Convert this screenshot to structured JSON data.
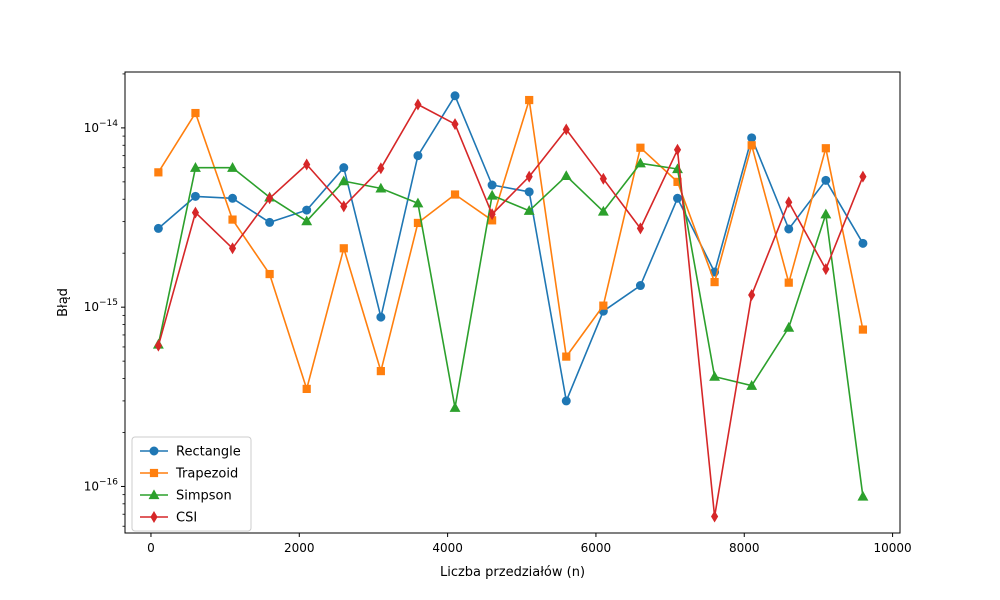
{
  "chart_data": {
    "type": "line",
    "xlabel": "Liczba przedziałów (n)",
    "ylabel": "Błąd",
    "xlim": [
      -350,
      10100
    ],
    "ylim": [
      5.5e-17,
      2.05e-14
    ],
    "yscale": "log",
    "x_ticks": [
      {
        "value": 0,
        "label": "0"
      },
      {
        "value": 2000,
        "label": "2000"
      },
      {
        "value": 4000,
        "label": "4000"
      },
      {
        "value": 6000,
        "label": "6000"
      },
      {
        "value": 8000,
        "label": "8000"
      },
      {
        "value": 10000,
        "label": "10000"
      }
    ],
    "y_ticks": [
      {
        "value": 1e-16,
        "base": "10",
        "exp": "−16"
      },
      {
        "value": 1e-15,
        "base": "10",
        "exp": "−15"
      },
      {
        "value": 1e-14,
        "base": "10",
        "exp": "−14"
      }
    ],
    "grid": false,
    "legend": "lower-left",
    "x": [
      100,
      600,
      1100,
      1600,
      2100,
      2600,
      3100,
      3600,
      4100,
      4600,
      5100,
      5600,
      6100,
      6600,
      7100,
      7600,
      8100,
      8600,
      9100,
      9600
    ],
    "series": [
      {
        "name": "Rectangle",
        "color": "#1f77b4",
        "marker": "circle",
        "values": [
          2.75e-15,
          4.15e-15,
          4.05e-15,
          2.97e-15,
          3.48e-15,
          6e-15,
          8.8e-16,
          7e-15,
          1.51e-14,
          4.8e-15,
          4.4e-15,
          3e-16,
          9.5e-16,
          1.32e-15,
          4.05e-15,
          1.57e-15,
          8.8e-15,
          2.73e-15,
          5.1e-15,
          2.27e-15
        ]
      },
      {
        "name": "Trapezoid",
        "color": "#ff7f0e",
        "marker": "square",
        "values": [
          5.65e-15,
          1.21e-14,
          3.08e-15,
          1.53e-15,
          3.5e-16,
          2.13e-15,
          4.4e-16,
          2.95e-15,
          4.25e-15,
          3.05e-15,
          1.43e-14,
          5.3e-16,
          1.02e-15,
          7.75e-15,
          5e-15,
          1.38e-15,
          8e-15,
          1.37e-15,
          7.7e-15,
          7.5e-16
        ]
      },
      {
        "name": "Simpson",
        "color": "#2ca02c",
        "marker": "triangle",
        "values": [
          6.2e-16,
          6e-15,
          6e-15,
          4.1e-15,
          3.02e-15,
          5.05e-15,
          4.6e-15,
          3.8e-15,
          2.75e-16,
          4.2e-15,
          3.45e-15,
          5.4e-15,
          3.42e-15,
          6.35e-15,
          5.9e-15,
          4.1e-16,
          3.65e-16,
          7.7e-16,
          3.3e-15,
          8.8e-17
        ]
      },
      {
        "name": "CSI",
        "color": "#d62728",
        "marker": "diamond",
        "values": [
          6.1e-16,
          3.37e-15,
          2.13e-15,
          4.05e-15,
          6.25e-15,
          3.65e-15,
          5.95e-15,
          1.35e-14,
          1.05e-14,
          3.3e-15,
          5.35e-15,
          9.8e-15,
          5.2e-15,
          2.75e-15,
          7.55e-15,
          6.8e-17,
          1.17e-15,
          3.85e-15,
          1.63e-15,
          5.35e-15
        ]
      }
    ]
  }
}
